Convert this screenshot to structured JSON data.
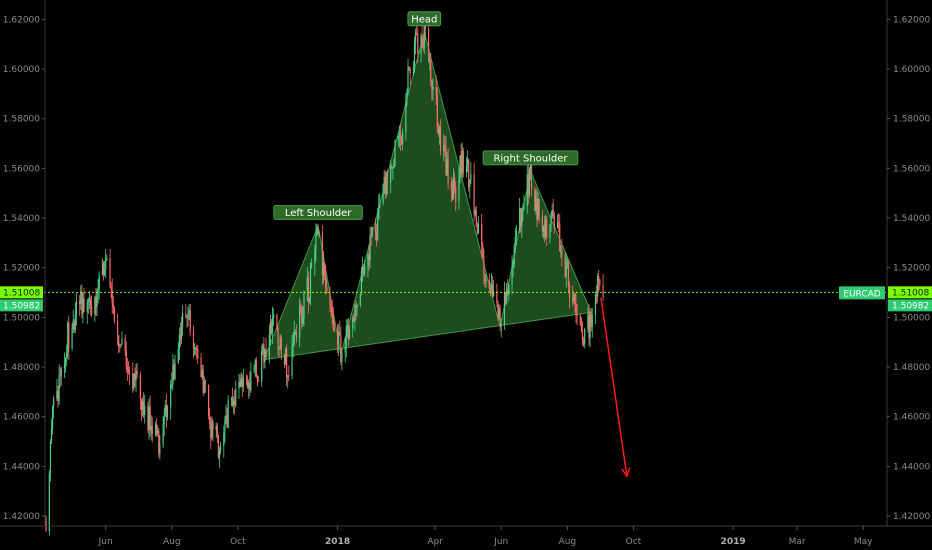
{
  "chart_data": {
    "type": "candlestick",
    "symbol": "EURCAD",
    "ylim": [
      1.416,
      1.627
    ],
    "y_ticks": [
      1.42,
      1.44,
      1.46,
      1.48,
      1.5,
      1.52,
      1.54,
      1.56,
      1.58,
      1.6,
      1.62
    ],
    "y_tick_labels": [
      "1.42000",
      "1.44000",
      "1.46000",
      "1.48000",
      "1.50000",
      "1.52000",
      "1.54000",
      "1.56000",
      "1.58000",
      "1.60000",
      "1.62000"
    ],
    "x_start": "2017-04-06",
    "x_end": "2019-05-23",
    "x_ticks": [
      {
        "date": "2017-06-01",
        "label": "Jun",
        "bold": false
      },
      {
        "date": "2017-08-01",
        "label": "Aug",
        "bold": false
      },
      {
        "date": "2017-10-01",
        "label": "Oct",
        "bold": false
      },
      {
        "date": "2018-01-01",
        "label": "2018",
        "bold": true
      },
      {
        "date": "2018-04-01",
        "label": "Apr",
        "bold": false
      },
      {
        "date": "2018-06-01",
        "label": "Jun",
        "bold": false
      },
      {
        "date": "2018-08-01",
        "label": "Aug",
        "bold": false
      },
      {
        "date": "2018-10-01",
        "label": "Oct",
        "bold": false
      },
      {
        "date": "2019-01-01",
        "label": "2019",
        "bold": true
      },
      {
        "date": "2019-03-01",
        "label": "Mar",
        "bold": false
      },
      {
        "date": "2019-05-01",
        "label": "May",
        "bold": false
      }
    ],
    "price_path": [
      [
        "2017-04-07",
        1.418
      ],
      [
        "2017-04-13",
        1.46
      ],
      [
        "2017-04-20",
        1.475
      ],
      [
        "2017-04-27",
        1.492
      ],
      [
        "2017-05-04",
        1.5
      ],
      [
        "2017-05-11",
        1.508
      ],
      [
        "2017-05-18",
        1.502
      ],
      [
        "2017-05-25",
        1.512
      ],
      [
        "2017-06-01",
        1.522
      ],
      [
        "2017-06-08",
        1.505
      ],
      [
        "2017-06-15",
        1.488
      ],
      [
        "2017-06-22",
        1.478
      ],
      [
        "2017-06-29",
        1.475
      ],
      [
        "2017-07-06",
        1.466
      ],
      [
        "2017-07-13",
        1.456
      ],
      [
        "2017-07-20",
        1.45
      ],
      [
        "2017-07-27",
        1.462
      ],
      [
        "2017-08-03",
        1.48
      ],
      [
        "2017-08-10",
        1.496
      ],
      [
        "2017-08-17",
        1.5
      ],
      [
        "2017-08-24",
        1.482
      ],
      [
        "2017-08-31",
        1.47
      ],
      [
        "2017-09-07",
        1.455
      ],
      [
        "2017-09-14",
        1.448
      ],
      [
        "2017-09-21",
        1.46
      ],
      [
        "2017-09-28",
        1.47
      ],
      [
        "2017-10-05",
        1.472
      ],
      [
        "2017-10-12",
        1.476
      ],
      [
        "2017-10-19",
        1.478
      ],
      [
        "2017-10-26",
        1.487
      ],
      [
        "2017-11-02",
        1.5
      ],
      [
        "2017-11-09",
        1.49
      ],
      [
        "2017-11-16",
        1.478
      ],
      [
        "2017-11-23",
        1.492
      ],
      [
        "2017-11-30",
        1.505
      ],
      [
        "2017-12-07",
        1.515
      ],
      [
        "2017-12-14",
        1.537
      ],
      [
        "2017-12-21",
        1.51
      ],
      [
        "2017-12-28",
        1.498
      ],
      [
        "2018-01-04",
        1.488
      ],
      [
        "2018-01-11",
        1.492
      ],
      [
        "2018-01-18",
        1.505
      ],
      [
        "2018-01-25",
        1.52
      ],
      [
        "2018-02-01",
        1.53
      ],
      [
        "2018-02-08",
        1.54
      ],
      [
        "2018-02-15",
        1.555
      ],
      [
        "2018-02-22",
        1.565
      ],
      [
        "2018-03-01",
        1.575
      ],
      [
        "2018-03-08",
        1.6
      ],
      [
        "2018-03-15",
        1.61
      ],
      [
        "2018-03-22",
        1.615
      ],
      [
        "2018-03-29",
        1.595
      ],
      [
        "2018-04-05",
        1.575
      ],
      [
        "2018-04-12",
        1.56
      ],
      [
        "2018-04-19",
        1.55
      ],
      [
        "2018-04-26",
        1.565
      ],
      [
        "2018-05-03",
        1.555
      ],
      [
        "2018-05-10",
        1.535
      ],
      [
        "2018-05-17",
        1.52
      ],
      [
        "2018-05-24",
        1.51
      ],
      [
        "2018-05-31",
        1.502
      ],
      [
        "2018-06-07",
        1.51
      ],
      [
        "2018-06-14",
        1.53
      ],
      [
        "2018-06-21",
        1.547
      ],
      [
        "2018-06-28",
        1.558
      ],
      [
        "2018-07-05",
        1.542
      ],
      [
        "2018-07-12",
        1.535
      ],
      [
        "2018-07-19",
        1.54
      ],
      [
        "2018-07-26",
        1.53
      ],
      [
        "2018-08-02",
        1.515
      ],
      [
        "2018-08-09",
        1.505
      ],
      [
        "2018-08-16",
        1.49
      ],
      [
        "2018-08-23",
        1.5
      ],
      [
        "2018-08-30",
        1.513
      ],
      [
        "2018-09-03",
        1.5098
      ]
    ],
    "horizontal_line": {
      "value": 1.51008,
      "color": "#7cfc00"
    },
    "price_tags": [
      {
        "label": "1.51008",
        "value": 1.51008,
        "color": "#7cfc00"
      },
      {
        "label": "1.50982",
        "value": 1.50982,
        "color": "#2ecc71"
      }
    ],
    "symbol_tag": {
      "label": "EURCAD",
      "color": "#2ecc71"
    },
    "pattern": {
      "name": "head-and-shoulders",
      "color": "#2e7d32",
      "points": [
        [
          "2017-10-25",
          1.483
        ],
        [
          "2017-12-14",
          1.537
        ],
        [
          "2018-01-04",
          1.485
        ],
        [
          "2018-03-22",
          1.615
        ],
        [
          "2018-05-31",
          1.496
        ],
        [
          "2018-06-28",
          1.559
        ],
        [
          "2018-08-23",
          1.502
        ]
      ],
      "labels": [
        {
          "text": "Left Shoulder",
          "date": "2017-12-14",
          "value": 1.537
        },
        {
          "text": "Head",
          "date": "2018-03-22",
          "value": 1.615
        },
        {
          "text": "Right Shoulder",
          "date": "2018-06-28",
          "value": 1.559
        }
      ]
    },
    "projection_arrow": {
      "from": [
        "2018-09-01",
        1.508
      ],
      "to": [
        "2018-09-25",
        1.436
      ],
      "color": "#ff1a1a"
    }
  }
}
